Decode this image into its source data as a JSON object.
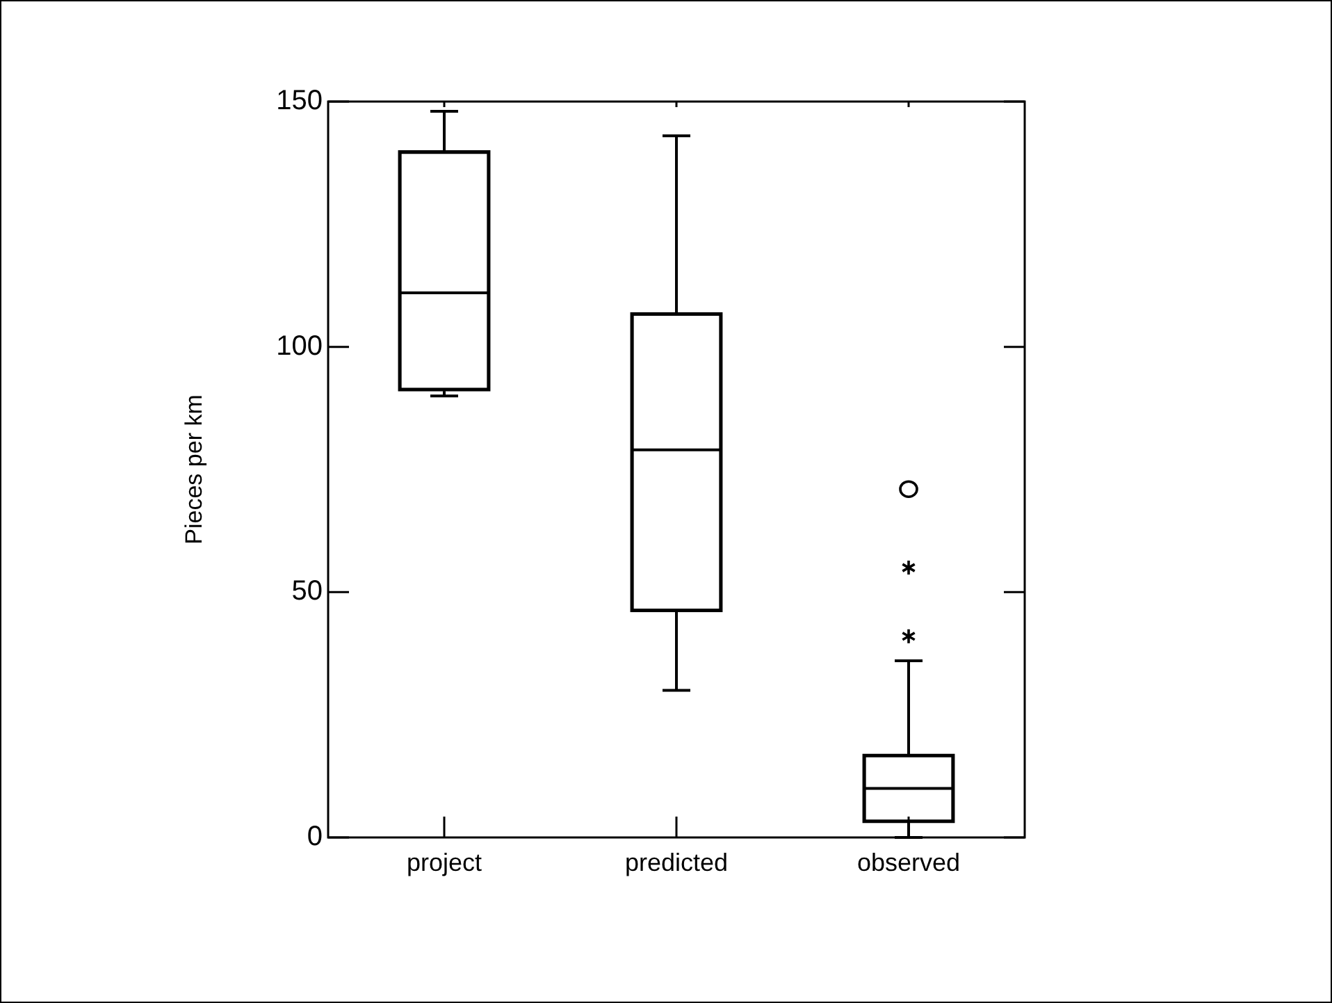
{
  "chart_data": {
    "type": "box",
    "ylabel": "Pieces per km",
    "categories": [
      "project",
      "predicted",
      "observed"
    ],
    "boxes": [
      {
        "low": 90,
        "q1": 91,
        "median": 111,
        "q3": 140,
        "high": 148
      },
      {
        "low": 30,
        "q1": 46,
        "median": 79,
        "q3": 107,
        "high": 143
      },
      {
        "low": 0,
        "q1": 3,
        "median": 10,
        "q3": 17,
        "high": 36,
        "outliers": [
          71,
          55,
          41
        ]
      }
    ],
    "ylim": [
      0,
      150
    ],
    "yticks": [
      0,
      50,
      100,
      150
    ],
    "grid": false,
    "legend": false
  }
}
